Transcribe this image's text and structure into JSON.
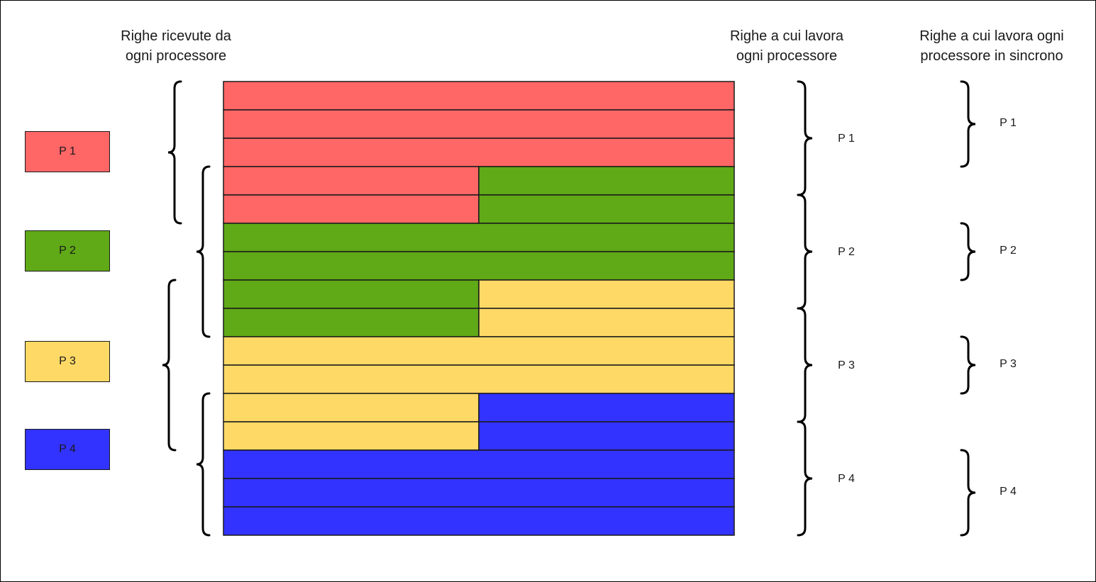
{
  "headings": {
    "received": "Righe ricevute da\nogni processore",
    "work": "Righe a cui lavora\nogni processore",
    "sync": "Righe a cui lavora ogni\nprocessore in sincrono"
  },
  "processors": [
    {
      "id": "p1",
      "label": "P 1",
      "color": "#FF6666"
    },
    {
      "id": "p2",
      "label": "P 2",
      "color": "#60A917"
    },
    {
      "id": "p3",
      "label": "P 3",
      "color": "#FFD966"
    },
    {
      "id": "p4",
      "label": "P 4",
      "color": "#3333FF"
    }
  ],
  "grid": {
    "rows": [
      [
        "p1"
      ],
      [
        "p1"
      ],
      [
        "p1"
      ],
      [
        "p1",
        "p2"
      ],
      [
        "p1",
        "p2"
      ],
      [
        "p2"
      ],
      [
        "p2"
      ],
      [
        "p2",
        "p3"
      ],
      [
        "p2",
        "p3"
      ],
      [
        "p3"
      ],
      [
        "p3"
      ],
      [
        "p3",
        "p4"
      ],
      [
        "p3",
        "p4"
      ],
      [
        "p4"
      ],
      [
        "p4"
      ],
      [
        "p4"
      ]
    ]
  },
  "received_rows": [
    {
      "processor": "p1",
      "from_row": 1,
      "to_row": 5
    },
    {
      "processor": "p2",
      "from_row": 4,
      "to_row": 9
    },
    {
      "processor": "p3",
      "from_row": 8,
      "to_row": 13
    },
    {
      "processor": "p4",
      "from_row": 12,
      "to_row": 16
    }
  ],
  "work_rows": [
    {
      "processor": "p1",
      "label": "P 1",
      "from_row": 1,
      "to_row": 4
    },
    {
      "processor": "p2",
      "label": "P 2",
      "from_row": 5,
      "to_row": 8
    },
    {
      "processor": "p3",
      "label": "P 3",
      "from_row": 9,
      "to_row": 12
    },
    {
      "processor": "p4",
      "label": "P 4",
      "from_row": 13,
      "to_row": 16
    }
  ],
  "sync_rows": [
    {
      "processor": "p1",
      "label": "P 1",
      "from_row": 1,
      "to_row": 3
    },
    {
      "processor": "p2",
      "label": "P 2",
      "from_row": 6,
      "to_row": 7
    },
    {
      "processor": "p3",
      "label": "P 3",
      "from_row": 10,
      "to_row": 11
    },
    {
      "processor": "p4",
      "label": "P 4",
      "from_row": 14,
      "to_row": 16
    }
  ]
}
